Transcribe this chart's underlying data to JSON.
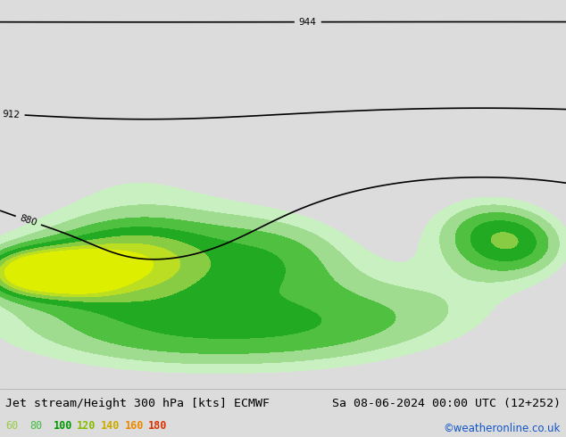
{
  "title_left": "Jet stream/Height 300 hPa [kts] ECMWF",
  "title_right": "Sa 08-06-2024 00:00 UTC (12+252)",
  "credit": "©weatheronline.co.uk",
  "legend_values": [
    60,
    80,
    100,
    120,
    140,
    160,
    180
  ],
  "legend_colors_text": [
    "#90ee90",
    "#32cd32",
    "#00bb00",
    "#88cc00",
    "#ccaa00",
    "#ee7700",
    "#dd2200"
  ],
  "wind_fill_colors": [
    "#c8f0c0",
    "#a0dc90",
    "#50c040",
    "#22aa22",
    "#88cc44",
    "#bbdd22",
    "#ddee00"
  ],
  "wind_levels": [
    60,
    80,
    100,
    120,
    140,
    160,
    180,
    220
  ],
  "contour_levels": [
    880,
    912,
    944
  ],
  "contour_color": "black",
  "contour_linewidth": 1.2,
  "background_color": "#dcdcdc",
  "land_color": "#d8e8c8",
  "sea_color": "#dcdcdc",
  "label_fontsize": 7.5,
  "title_fontsize": 9.5,
  "lon_min": 80,
  "lon_max": 215,
  "lat_min": -68,
  "lat_max": 20
}
